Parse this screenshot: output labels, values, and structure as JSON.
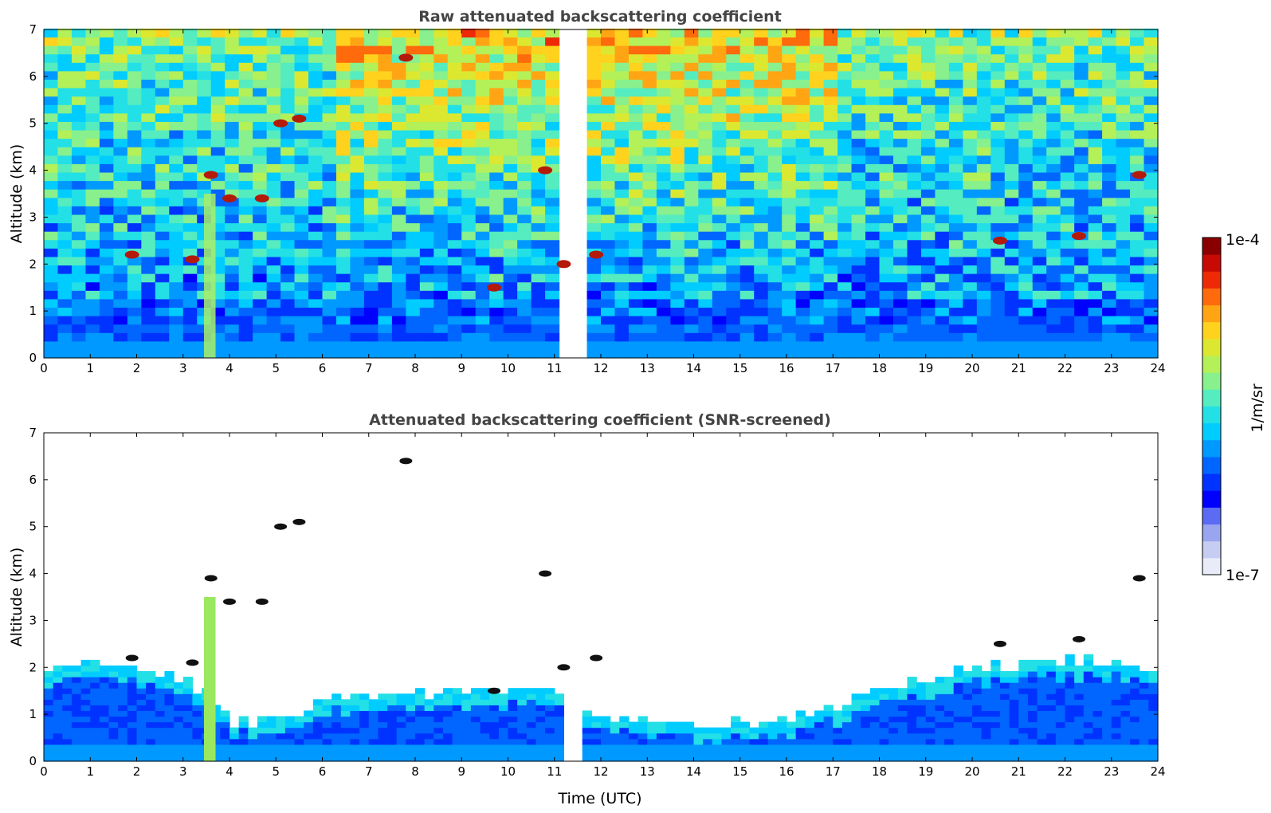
{
  "chart_data": [
    {
      "type": "heatmap",
      "title": "Raw attenuated backscattering coefficient",
      "xlabel": "",
      "ylabel": "Altitude (km)",
      "xlim": [
        0,
        24
      ],
      "ylim": [
        0,
        7
      ],
      "x_ticks": [
        "0",
        "1",
        "2",
        "3",
        "4",
        "5",
        "6",
        "7",
        "8",
        "9",
        "10",
        "11",
        "12",
        "13",
        "14",
        "15",
        "16",
        "17",
        "18",
        "19",
        "20",
        "21",
        "22",
        "23",
        "24"
      ],
      "y_ticks": [
        "0",
        "1",
        "2",
        "3",
        "4",
        "5",
        "6",
        "7"
      ],
      "data_extent_hours": [
        0,
        23.8
      ],
      "gap_hours": [
        11.35,
        11.47
      ],
      "features": [
        {
          "kind": "plume",
          "x": [
            3.45,
            3.7
          ],
          "y": [
            0,
            3.5
          ]
        },
        {
          "kind": "cloud",
          "x": 1.9,
          "y": 2.2
        },
        {
          "kind": "cloud",
          "x": 3.2,
          "y": 2.1
        },
        {
          "kind": "cloud",
          "x": 3.6,
          "y": 3.9
        },
        {
          "kind": "cloud",
          "x": 4.0,
          "y": 3.4
        },
        {
          "kind": "cloud",
          "x": 4.7,
          "y": 3.4
        },
        {
          "kind": "cloud",
          "x": 5.1,
          "y": 5.0
        },
        {
          "kind": "cloud",
          "x": 5.5,
          "y": 5.1
        },
        {
          "kind": "cloud",
          "x": 7.8,
          "y": 6.4
        },
        {
          "kind": "cloud",
          "x": 9.7,
          "y": 1.5
        },
        {
          "kind": "cloud",
          "x": 10.8,
          "y": 4.0
        },
        {
          "kind": "cloud",
          "x": 11.2,
          "y": 2.0
        },
        {
          "kind": "cloud",
          "x": 11.9,
          "y": 2.2
        },
        {
          "kind": "cloud",
          "x": 20.6,
          "y": 2.5
        },
        {
          "kind": "cloud",
          "x": 22.3,
          "y": 2.6
        },
        {
          "kind": "cloud",
          "x": 23.6,
          "y": 3.9
        }
      ]
    },
    {
      "type": "heatmap",
      "title": "Attenuated backscattering coefficient (SNR-screened)",
      "xlabel": "Time (UTC)",
      "ylabel": "Altitude (km)",
      "xlim": [
        0,
        24
      ],
      "ylim": [
        0,
        7
      ],
      "x_ticks": [
        "0",
        "1",
        "2",
        "3",
        "4",
        "5",
        "6",
        "7",
        "8",
        "9",
        "10",
        "11",
        "12",
        "13",
        "14",
        "15",
        "16",
        "17",
        "18",
        "19",
        "20",
        "21",
        "22",
        "23",
        "24"
      ],
      "y_ticks": [
        "0",
        "1",
        "2",
        "3",
        "4",
        "5",
        "6",
        "7"
      ],
      "boundary_layer_top_km": [
        [
          0,
          1.9
        ],
        [
          1,
          2.0
        ],
        [
          2,
          1.9
        ],
        [
          3,
          1.6
        ],
        [
          3.5,
          1.3
        ],
        [
          4,
          0.8
        ],
        [
          5,
          0.8
        ],
        [
          6,
          1.3
        ],
        [
          7,
          1.4
        ],
        [
          8,
          1.4
        ],
        [
          9,
          1.4
        ],
        [
          10,
          1.5
        ],
        [
          11,
          1.3
        ],
        [
          12,
          0.8
        ],
        [
          13,
          0.8
        ],
        [
          14,
          0.7
        ],
        [
          15,
          0.8
        ],
        [
          16,
          0.8
        ],
        [
          17,
          1.1
        ],
        [
          18,
          1.5
        ],
        [
          19,
          1.7
        ],
        [
          20,
          1.9
        ],
        [
          21,
          2.0
        ],
        [
          22,
          2.1
        ],
        [
          23,
          2.0
        ],
        [
          23.8,
          1.9
        ]
      ]
    }
  ],
  "colorbar": {
    "label": "1/m/sr",
    "max_label": "1e-4",
    "min_label": "1e-7",
    "colors": [
      "#e9ecf8",
      "#c6cdf3",
      "#9aa5f0",
      "#5c6bf3",
      "#0000ff",
      "#0033ff",
      "#0066ff",
      "#0099ff",
      "#00ccff",
      "#22e0e6",
      "#55ecc0",
      "#88f08c",
      "#b4f058",
      "#dce830",
      "#ffd21e",
      "#ffa514",
      "#ff6a0c",
      "#ee2a06",
      "#c80a04",
      "#8a0000"
    ]
  }
}
